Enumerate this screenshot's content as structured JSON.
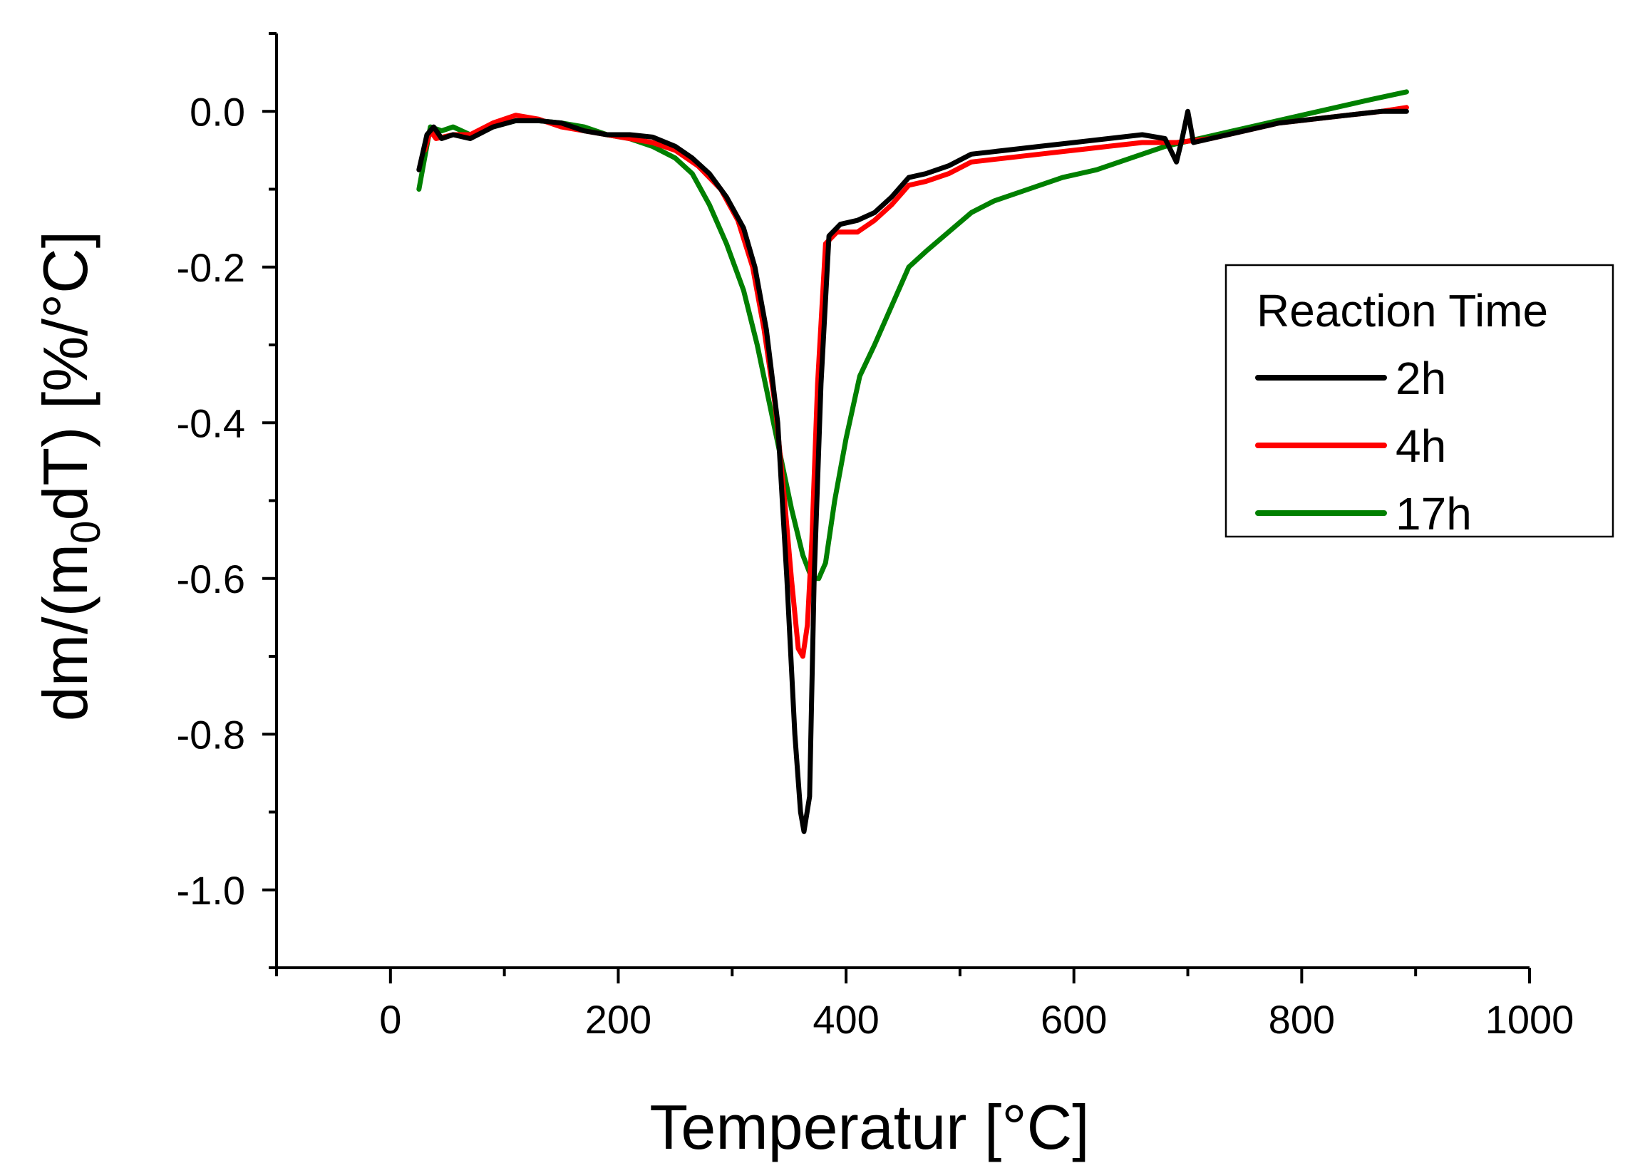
{
  "chart_data": {
    "type": "line",
    "title": "",
    "xlabel": "Temperatur [°C]",
    "ylabel_parts": {
      "before": "dm/(m",
      "subscript": "0",
      "after": "dT) [%/°C]"
    },
    "xlim": [
      -100,
      1000
    ],
    "ylim": [
      -1.1,
      0.1
    ],
    "x_major_ticks": [
      0,
      200,
      400,
      600,
      800,
      1000
    ],
    "x_tick_labels": [
      "0",
      "200",
      "400",
      "600",
      "800",
      "1000"
    ],
    "x_minor_ticks": [
      -100,
      100,
      300,
      500,
      700,
      900
    ],
    "y_major_ticks": [
      0.0,
      -0.2,
      -0.4,
      -0.6,
      -0.8,
      -1.0
    ],
    "y_tick_labels": [
      "0.0",
      "-0.2",
      "-0.4",
      "-0.6",
      "-0.8",
      "-1.0"
    ],
    "y_minor_ticks": [
      0.1,
      -0.1,
      -0.3,
      -0.5,
      -0.7,
      -0.9,
      -1.1
    ],
    "grid": false,
    "legend": {
      "title": "Reaction Time",
      "position": "right"
    },
    "series": [
      {
        "name": "2h",
        "color": "#000000",
        "points": [
          [
            25,
            -0.075
          ],
          [
            32,
            -0.03
          ],
          [
            38,
            -0.02
          ],
          [
            45,
            -0.035
          ],
          [
            55,
            -0.03
          ],
          [
            70,
            -0.035
          ],
          [
            90,
            -0.02
          ],
          [
            110,
            -0.012
          ],
          [
            130,
            -0.012
          ],
          [
            150,
            -0.015
          ],
          [
            170,
            -0.025
          ],
          [
            190,
            -0.03
          ],
          [
            210,
            -0.03
          ],
          [
            230,
            -0.033
          ],
          [
            250,
            -0.045
          ],
          [
            265,
            -0.06
          ],
          [
            280,
            -0.08
          ],
          [
            295,
            -0.11
          ],
          [
            310,
            -0.15
          ],
          [
            320,
            -0.2
          ],
          [
            330,
            -0.28
          ],
          [
            340,
            -0.4
          ],
          [
            348,
            -0.6
          ],
          [
            355,
            -0.8
          ],
          [
            360,
            -0.9
          ],
          [
            363,
            -0.925
          ],
          [
            368,
            -0.88
          ],
          [
            372,
            -0.6
          ],
          [
            378,
            -0.35
          ],
          [
            385,
            -0.16
          ],
          [
            395,
            -0.145
          ],
          [
            410,
            -0.14
          ],
          [
            425,
            -0.13
          ],
          [
            440,
            -0.11
          ],
          [
            455,
            -0.085
          ],
          [
            470,
            -0.08
          ],
          [
            490,
            -0.07
          ],
          [
            510,
            -0.055
          ],
          [
            540,
            -0.05
          ],
          [
            570,
            -0.045
          ],
          [
            600,
            -0.04
          ],
          [
            630,
            -0.035
          ],
          [
            660,
            -0.03
          ],
          [
            680,
            -0.035
          ],
          [
            690,
            -0.065
          ],
          [
            695,
            -0.035
          ],
          [
            700,
            0.0
          ],
          [
            705,
            -0.04
          ],
          [
            720,
            -0.035
          ],
          [
            750,
            -0.025
          ],
          [
            780,
            -0.015
          ],
          [
            810,
            -0.01
          ],
          [
            840,
            -0.005
          ],
          [
            870,
            0.0
          ],
          [
            892,
            0.0
          ]
        ]
      },
      {
        "name": "4h",
        "color": "#ff0000",
        "points": [
          [
            30,
            -0.05
          ],
          [
            35,
            -0.025
          ],
          [
            40,
            -0.035
          ],
          [
            55,
            -0.03
          ],
          [
            70,
            -0.03
          ],
          [
            90,
            -0.015
          ],
          [
            110,
            -0.005
          ],
          [
            130,
            -0.01
          ],
          [
            150,
            -0.02
          ],
          [
            170,
            -0.025
          ],
          [
            190,
            -0.03
          ],
          [
            210,
            -0.035
          ],
          [
            230,
            -0.04
          ],
          [
            250,
            -0.05
          ],
          [
            270,
            -0.07
          ],
          [
            290,
            -0.1
          ],
          [
            305,
            -0.14
          ],
          [
            318,
            -0.2
          ],
          [
            328,
            -0.28
          ],
          [
            338,
            -0.38
          ],
          [
            346,
            -0.5
          ],
          [
            352,
            -0.6
          ],
          [
            358,
            -0.69
          ],
          [
            362,
            -0.7
          ],
          [
            366,
            -0.66
          ],
          [
            370,
            -0.55
          ],
          [
            375,
            -0.35
          ],
          [
            382,
            -0.17
          ],
          [
            392,
            -0.155
          ],
          [
            410,
            -0.155
          ],
          [
            425,
            -0.14
          ],
          [
            440,
            -0.12
          ],
          [
            455,
            -0.095
          ],
          [
            470,
            -0.09
          ],
          [
            490,
            -0.08
          ],
          [
            510,
            -0.065
          ],
          [
            540,
            -0.06
          ],
          [
            570,
            -0.055
          ],
          [
            600,
            -0.05
          ],
          [
            630,
            -0.045
          ],
          [
            660,
            -0.04
          ],
          [
            690,
            -0.04
          ],
          [
            720,
            -0.035
          ],
          [
            750,
            -0.025
          ],
          [
            780,
            -0.015
          ],
          [
            810,
            -0.01
          ],
          [
            840,
            -0.005
          ],
          [
            870,
            0.0
          ],
          [
            892,
            0.005
          ]
        ]
      },
      {
        "name": "17h",
        "color": "#008000",
        "points": [
          [
            25,
            -0.1
          ],
          [
            30,
            -0.06
          ],
          [
            35,
            -0.02
          ],
          [
            45,
            -0.025
          ],
          [
            55,
            -0.02
          ],
          [
            70,
            -0.03
          ],
          [
            90,
            -0.02
          ],
          [
            110,
            -0.012
          ],
          [
            130,
            -0.012
          ],
          [
            150,
            -0.015
          ],
          [
            170,
            -0.02
          ],
          [
            190,
            -0.03
          ],
          [
            210,
            -0.035
          ],
          [
            230,
            -0.045
          ],
          [
            250,
            -0.06
          ],
          [
            265,
            -0.08
          ],
          [
            280,
            -0.12
          ],
          [
            295,
            -0.17
          ],
          [
            310,
            -0.23
          ],
          [
            322,
            -0.3
          ],
          [
            332,
            -0.37
          ],
          [
            342,
            -0.44
          ],
          [
            352,
            -0.51
          ],
          [
            362,
            -0.57
          ],
          [
            370,
            -0.6
          ],
          [
            376,
            -0.6
          ],
          [
            382,
            -0.58
          ],
          [
            390,
            -0.5
          ],
          [
            400,
            -0.42
          ],
          [
            412,
            -0.34
          ],
          [
            425,
            -0.3
          ],
          [
            440,
            -0.25
          ],
          [
            455,
            -0.2
          ],
          [
            470,
            -0.18
          ],
          [
            490,
            -0.155
          ],
          [
            510,
            -0.13
          ],
          [
            530,
            -0.115
          ],
          [
            560,
            -0.1
          ],
          [
            590,
            -0.085
          ],
          [
            620,
            -0.075
          ],
          [
            650,
            -0.06
          ],
          [
            680,
            -0.045
          ],
          [
            710,
            -0.035
          ],
          [
            740,
            -0.025
          ],
          [
            770,
            -0.015
          ],
          [
            800,
            -0.005
          ],
          [
            830,
            0.005
          ],
          [
            860,
            0.015
          ],
          [
            892,
            0.025
          ]
        ]
      }
    ]
  }
}
